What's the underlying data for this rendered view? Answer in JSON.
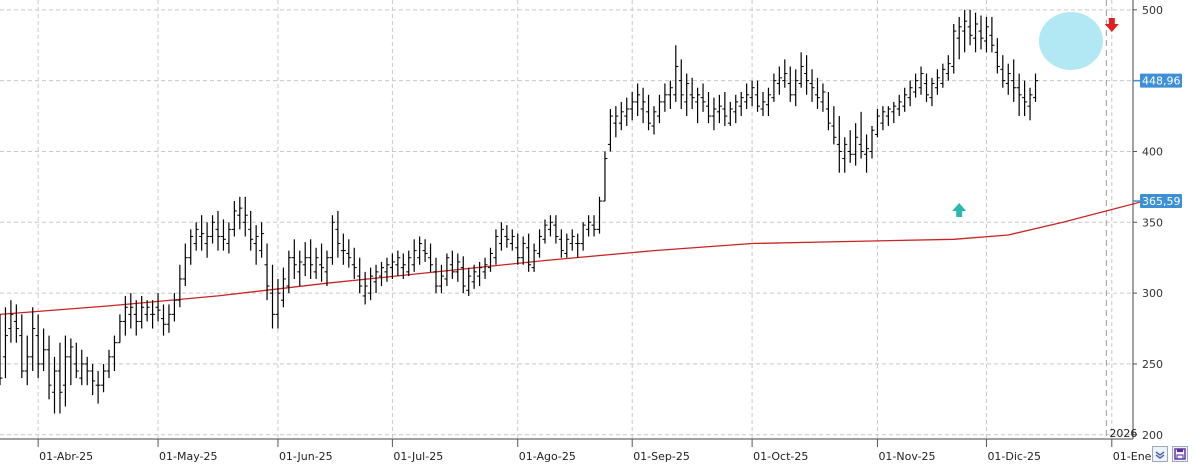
{
  "chart_data": {
    "type": "ohlc",
    "yaxis": {
      "ticks": [
        200,
        250,
        300,
        350,
        400,
        450,
        500
      ],
      "tick_labels": [
        "200",
        "250",
        "300",
        "350",
        "400",
        "450",
        "500"
      ],
      "ylim": [
        197,
        502
      ]
    },
    "xaxis": {
      "months": [
        {
          "label": "01-Abr-25",
          "bar": 7
        },
        {
          "label": "01-May-25",
          "bar": 29
        },
        {
          "label": "01-Jun-25",
          "bar": 51
        },
        {
          "label": "01-Jul-25",
          "bar": 72
        },
        {
          "label": "01-Ago-25",
          "bar": 95
        },
        {
          "label": "01-Sep-25",
          "bar": 116
        },
        {
          "label": "01-Oct-25",
          "bar": 138
        },
        {
          "label": "01-Nov-25",
          "bar": 161
        },
        {
          "label": "01-Dic-25",
          "bar": 181
        },
        {
          "label": "01-Ene-",
          "bar": 204
        }
      ],
      "year_label": "2026",
      "year_bar": 203
    },
    "price_labels": {
      "last": "448,96",
      "ma": "365,59"
    },
    "colors": {
      "bars": "#000000",
      "ma": "#cc2222",
      "grid": "#c8c8c8",
      "label_bg": "#3d8fd6",
      "circle": "#a8e6f2",
      "up_arrow": "#2ab8b0",
      "down_arrow": "#e02020"
    },
    "markers": {
      "up_arrow_bar": 176,
      "down_arrow_bar": 204,
      "circle_bars": [
        192,
        201
      ]
    },
    "ma_line": [
      [
        0,
        285
      ],
      [
        20,
        291
      ],
      [
        40,
        298
      ],
      [
        60,
        307
      ],
      [
        80,
        315
      ],
      [
        100,
        323
      ],
      [
        120,
        330
      ],
      [
        138,
        335
      ],
      [
        150,
        336
      ],
      [
        175,
        338
      ],
      [
        185,
        341
      ],
      [
        195,
        350
      ],
      [
        210,
        365
      ]
    ],
    "bars": [
      [
        270,
        285,
        235,
        240
      ],
      [
        255,
        290,
        240,
        270
      ],
      [
        275,
        295,
        265,
        285
      ],
      [
        280,
        292,
        265,
        275
      ],
      [
        270,
        285,
        240,
        245
      ],
      [
        245,
        270,
        235,
        255
      ],
      [
        255,
        290,
        245,
        275
      ],
      [
        270,
        285,
        240,
        250
      ],
      [
        250,
        275,
        245,
        260
      ],
      [
        260,
        270,
        225,
        235
      ],
      [
        230,
        255,
        215,
        245
      ],
      [
        245,
        265,
        215,
        230
      ],
      [
        235,
        270,
        220,
        255
      ],
      [
        255,
        268,
        235,
        262
      ],
      [
        250,
        265,
        240,
        245
      ],
      [
        240,
        260,
        235,
        250
      ],
      [
        250,
        255,
        235,
        245
      ],
      [
        245,
        250,
        228,
        238
      ],
      [
        235,
        245,
        222,
        235
      ],
      [
        235,
        250,
        230,
        245
      ],
      [
        245,
        260,
        240,
        255
      ],
      [
        255,
        270,
        245,
        265
      ],
      [
        265,
        285,
        265,
        280
      ],
      [
        280,
        298,
        270,
        290
      ],
      [
        285,
        300,
        275,
        290
      ],
      [
        285,
        295,
        270,
        280
      ],
      [
        280,
        298,
        275,
        290
      ],
      [
        285,
        295,
        280,
        290
      ],
      [
        285,
        295,
        275,
        285
      ],
      [
        290,
        300,
        280,
        288
      ],
      [
        282,
        292,
        270,
        278
      ],
      [
        278,
        292,
        272,
        285
      ],
      [
        285,
        300,
        280,
        295
      ],
      [
        295,
        320,
        290,
        310
      ],
      [
        310,
        335,
        305,
        325
      ],
      [
        325,
        345,
        320,
        340
      ],
      [
        335,
        350,
        330,
        345
      ],
      [
        340,
        355,
        330,
        342
      ],
      [
        335,
        350,
        325,
        340
      ],
      [
        340,
        355,
        335,
        350
      ],
      [
        345,
        358,
        330,
        340
      ],
      [
        340,
        352,
        330,
        338
      ],
      [
        335,
        350,
        328,
        345
      ],
      [
        345,
        365,
        340,
        358
      ],
      [
        355,
        368,
        345,
        360
      ],
      [
        350,
        368,
        340,
        355
      ],
      [
        345,
        358,
        330,
        338
      ],
      [
        335,
        348,
        320,
        340
      ],
      [
        330,
        350,
        325,
        342
      ],
      [
        320,
        335,
        295,
        305
      ],
      [
        300,
        320,
        275,
        285
      ],
      [
        285,
        310,
        275,
        300
      ],
      [
        295,
        318,
        290,
        310
      ],
      [
        305,
        330,
        300,
        325
      ],
      [
        325,
        338,
        310,
        320
      ],
      [
        315,
        330,
        305,
        322
      ],
      [
        320,
        336,
        312,
        325
      ],
      [
        325,
        338,
        310,
        320
      ],
      [
        315,
        332,
        310,
        325
      ],
      [
        320,
        335,
        308,
        318
      ],
      [
        315,
        330,
        305,
        325
      ],
      [
        325,
        355,
        320,
        350
      ],
      [
        345,
        358,
        325,
        335
      ],
      [
        330,
        342,
        320,
        330
      ],
      [
        328,
        338,
        318,
        325
      ],
      [
        320,
        332,
        310,
        318
      ],
      [
        312,
        325,
        300,
        305
      ],
      [
        298,
        315,
        292,
        305
      ],
      [
        300,
        318,
        295,
        312
      ],
      [
        308,
        320,
        300,
        315
      ],
      [
        312,
        322,
        305,
        318
      ],
      [
        315,
        325,
        308,
        320
      ],
      [
        318,
        328,
        310,
        322
      ],
      [
        320,
        330,
        312,
        325
      ],
      [
        318,
        328,
        310,
        320
      ],
      [
        315,
        330,
        312,
        325
      ],
      [
        320,
        338,
        315,
        330
      ],
      [
        325,
        340,
        320,
        335
      ],
      [
        330,
        338,
        322,
        328
      ],
      [
        325,
        335,
        315,
        320
      ],
      [
        315,
        325,
        300,
        305
      ],
      [
        305,
        320,
        300,
        312
      ],
      [
        310,
        328,
        305,
        325
      ],
      [
        320,
        330,
        310,
        315
      ],
      [
        315,
        328,
        308,
        322
      ],
      [
        318,
        326,
        300,
        305
      ],
      [
        302,
        318,
        298,
        312
      ],
      [
        308,
        320,
        303,
        315
      ],
      [
        312,
        322,
        305,
        318
      ],
      [
        315,
        325,
        310,
        320
      ],
      [
        318,
        332,
        315,
        328
      ],
      [
        325,
        345,
        320,
        340
      ],
      [
        335,
        350,
        330,
        345
      ],
      [
        340,
        348,
        332,
        338
      ],
      [
        335,
        345,
        330,
        340
      ],
      [
        332,
        342,
        320,
        325
      ],
      [
        325,
        340,
        320,
        335
      ],
      [
        332,
        342,
        315,
        320
      ],
      [
        318,
        335,
        315,
        330
      ],
      [
        328,
        345,
        325,
        340
      ],
      [
        338,
        352,
        335,
        348
      ],
      [
        345,
        355,
        340,
        350
      ],
      [
        348,
        355,
        335,
        340
      ],
      [
        338,
        345,
        325,
        330
      ],
      [
        328,
        342,
        325,
        338
      ],
      [
        335,
        345,
        330,
        340
      ],
      [
        335,
        342,
        325,
        335
      ],
      [
        335,
        350,
        330,
        348
      ],
      [
        345,
        355,
        340,
        350
      ],
      [
        348,
        355,
        340,
        345
      ],
      [
        345,
        368,
        342,
        365
      ],
      [
        365,
        400,
        365,
        395
      ],
      [
        405,
        430,
        400,
        425
      ],
      [
        420,
        432,
        410,
        425
      ],
      [
        420,
        435,
        415,
        428
      ],
      [
        425,
        438,
        418,
        430
      ],
      [
        430,
        442,
        422,
        435
      ],
      [
        435,
        448,
        425,
        440
      ],
      [
        430,
        445,
        420,
        435
      ],
      [
        428,
        440,
        415,
        420
      ],
      [
        418,
        432,
        412,
        428
      ],
      [
        425,
        440,
        420,
        435
      ],
      [
        435,
        448,
        428,
        440
      ],
      [
        440,
        450,
        430,
        445
      ],
      [
        440,
        475,
        435,
        460
      ],
      [
        450,
        465,
        430,
        440
      ],
      [
        435,
        455,
        425,
        448
      ],
      [
        440,
        452,
        430,
        438
      ],
      [
        435,
        445,
        420,
        440
      ],
      [
        438,
        448,
        428,
        435
      ],
      [
        432,
        442,
        420,
        425
      ],
      [
        425,
        438,
        415,
        430
      ],
      [
        428,
        440,
        420,
        432
      ],
      [
        430,
        442,
        418,
        425
      ],
      [
        420,
        435,
        418,
        430
      ],
      [
        428,
        440,
        420,
        435
      ],
      [
        432,
        442,
        425,
        438
      ],
      [
        435,
        448,
        430,
        440
      ],
      [
        438,
        450,
        432,
        445
      ],
      [
        440,
        450,
        428,
        432
      ],
      [
        430,
        442,
        425,
        435
      ],
      [
        433,
        445,
        425,
        440
      ],
      [
        438,
        455,
        435,
        450
      ],
      [
        448,
        460,
        440,
        452
      ],
      [
        450,
        465,
        445,
        455
      ],
      [
        448,
        460,
        435,
        440
      ],
      [
        440,
        458,
        432,
        450
      ],
      [
        448,
        470,
        445,
        460
      ],
      [
        455,
        468,
        440,
        450
      ],
      [
        448,
        458,
        435,
        445
      ],
      [
        440,
        452,
        430,
        438
      ],
      [
        435,
        448,
        428,
        442
      ],
      [
        430,
        442,
        415,
        420
      ],
      [
        418,
        432,
        405,
        410
      ],
      [
        405,
        425,
        385,
        400
      ],
      [
        395,
        410,
        385,
        405
      ],
      [
        400,
        415,
        392,
        398
      ],
      [
        398,
        420,
        390,
        410
      ],
      [
        405,
        428,
        395,
        400
      ],
      [
        398,
        412,
        385,
        402
      ],
      [
        400,
        418,
        395,
        415
      ],
      [
        412,
        430,
        410,
        425
      ],
      [
        420,
        432,
        415,
        428
      ],
      [
        425,
        432,
        418,
        430
      ],
      [
        428,
        435,
        420,
        432
      ],
      [
        430,
        440,
        425,
        435
      ],
      [
        432,
        445,
        428,
        440
      ],
      [
        438,
        450,
        432,
        445
      ],
      [
        442,
        455,
        438,
        450
      ],
      [
        445,
        460,
        440,
        455
      ],
      [
        448,
        455,
        435,
        440
      ],
      [
        438,
        452,
        432,
        448
      ],
      [
        445,
        458,
        440,
        452
      ],
      [
        448,
        462,
        445,
        458
      ],
      [
        455,
        468,
        450,
        462
      ],
      [
        460,
        490,
        455,
        485
      ],
      [
        480,
        495,
        465,
        488
      ],
      [
        485,
        500,
        470,
        492
      ],
      [
        488,
        500,
        475,
        482
      ],
      [
        480,
        498,
        470,
        490
      ],
      [
        485,
        496,
        472,
        480
      ],
      [
        478,
        495,
        470,
        488
      ],
      [
        482,
        495,
        470,
        475
      ],
      [
        470,
        480,
        455,
        460
      ],
      [
        458,
        468,
        445,
        450
      ],
      [
        448,
        462,
        440,
        455
      ],
      [
        450,
        465,
        435,
        445
      ],
      [
        445,
        455,
        425,
        440
      ],
      [
        438,
        450,
        425,
        435
      ],
      [
        432,
        445,
        422,
        440
      ],
      [
        438,
        455,
        435,
        450
      ]
    ]
  }
}
